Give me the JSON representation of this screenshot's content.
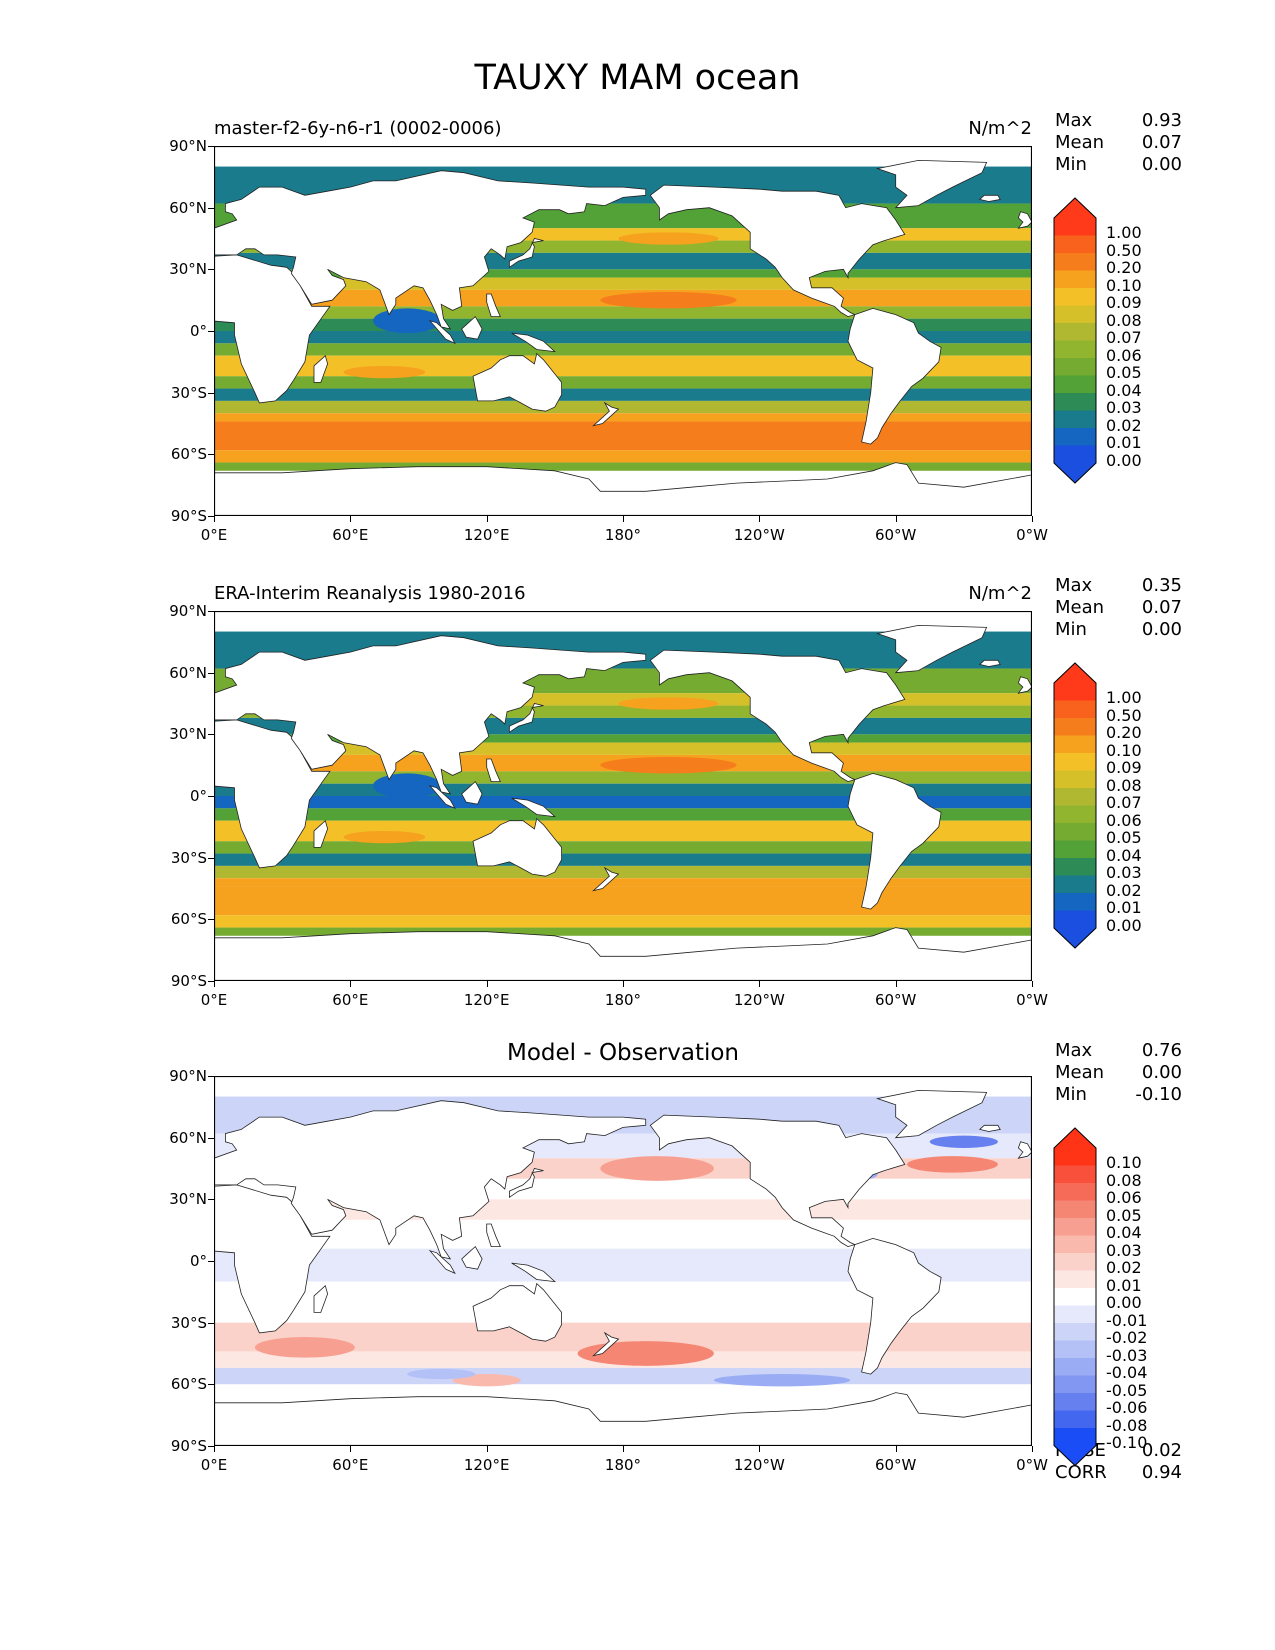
{
  "title": "TAUXY MAM ocean",
  "y_ticks": [
    "90°N",
    "60°N",
    "30°N",
    "0°",
    "30°S",
    "60°S",
    "90°S"
  ],
  "x_ticks": [
    "0°E",
    "60°E",
    "120°E",
    "180°",
    "120°W",
    "60°W",
    "0°W"
  ],
  "panels": [
    {
      "title_left": "master-f2-6y-n6-r1 (0002-0006)",
      "units": "N/m^2",
      "stats": [
        {
          "k": "Max",
          "v": "0.93"
        },
        {
          "k": "Mean",
          "v": "0.07"
        },
        {
          "k": "Min",
          "v": "0.00"
        }
      ],
      "levels": [
        "1.00",
        "0.50",
        "0.20",
        "0.10",
        "0.09",
        "0.08",
        "0.07",
        "0.06",
        "0.05",
        "0.04",
        "0.03",
        "0.02",
        "0.01",
        "0.00"
      ],
      "colors": [
        "#ff3a1a",
        "#f8621c",
        "#f57d1b",
        "#f6a21e",
        "#f4c028",
        "#d6c02a",
        "#b0b832",
        "#92b530",
        "#75ab30",
        "#52a238",
        "#2d8b55",
        "#1a7b8c",
        "#1566c0",
        "#1b4fe0"
      ]
    },
    {
      "title_left": "ERA-Interim Reanalysis 1980-2016",
      "units": "N/m^2",
      "stats": [
        {
          "k": "Max",
          "v": "0.35"
        },
        {
          "k": "Mean",
          "v": "0.07"
        },
        {
          "k": "Min",
          "v": "0.00"
        }
      ],
      "levels": [
        "1.00",
        "0.50",
        "0.20",
        "0.10",
        "0.09",
        "0.08",
        "0.07",
        "0.06",
        "0.05",
        "0.04",
        "0.03",
        "0.02",
        "0.01",
        "0.00"
      ],
      "colors": [
        "#ff3a1a",
        "#f8621c",
        "#f57d1b",
        "#f6a21e",
        "#f4c028",
        "#d6c02a",
        "#b0b832",
        "#92b530",
        "#75ab30",
        "#52a238",
        "#2d8b55",
        "#1a7b8c",
        "#1566c0",
        "#1b4fe0"
      ]
    },
    {
      "title_center": "Model - Observation",
      "stats": [
        {
          "k": "Max",
          "v": "0.76"
        },
        {
          "k": "Mean",
          "v": "0.00"
        },
        {
          "k": "Min",
          "v": "-0.10"
        }
      ],
      "levels": [
        "0.10",
        "0.08",
        "0.06",
        "0.05",
        "0.04",
        "0.03",
        "0.02",
        "0.01",
        "0.00",
        "-0.01",
        "-0.02",
        "-0.03",
        "-0.04",
        "-0.05",
        "-0.06",
        "-0.08",
        "-0.10"
      ],
      "colors": [
        "#ff3316",
        "#f8503a",
        "#f56b58",
        "#f58673",
        "#f7a091",
        "#f9b9ad",
        "#fbd2c9",
        "#fde7e2",
        "#ffffff",
        "#e5e9fb",
        "#ccd5f8",
        "#b3c1f6",
        "#9aadf4",
        "#8197f2",
        "#6780f0",
        "#4467f0",
        "#1a4df5"
      ],
      "bottom_stats": [
        {
          "k": "RMSE",
          "v": "0.02"
        },
        {
          "k": "CORR",
          "v": "0.94"
        }
      ]
    }
  ]
}
